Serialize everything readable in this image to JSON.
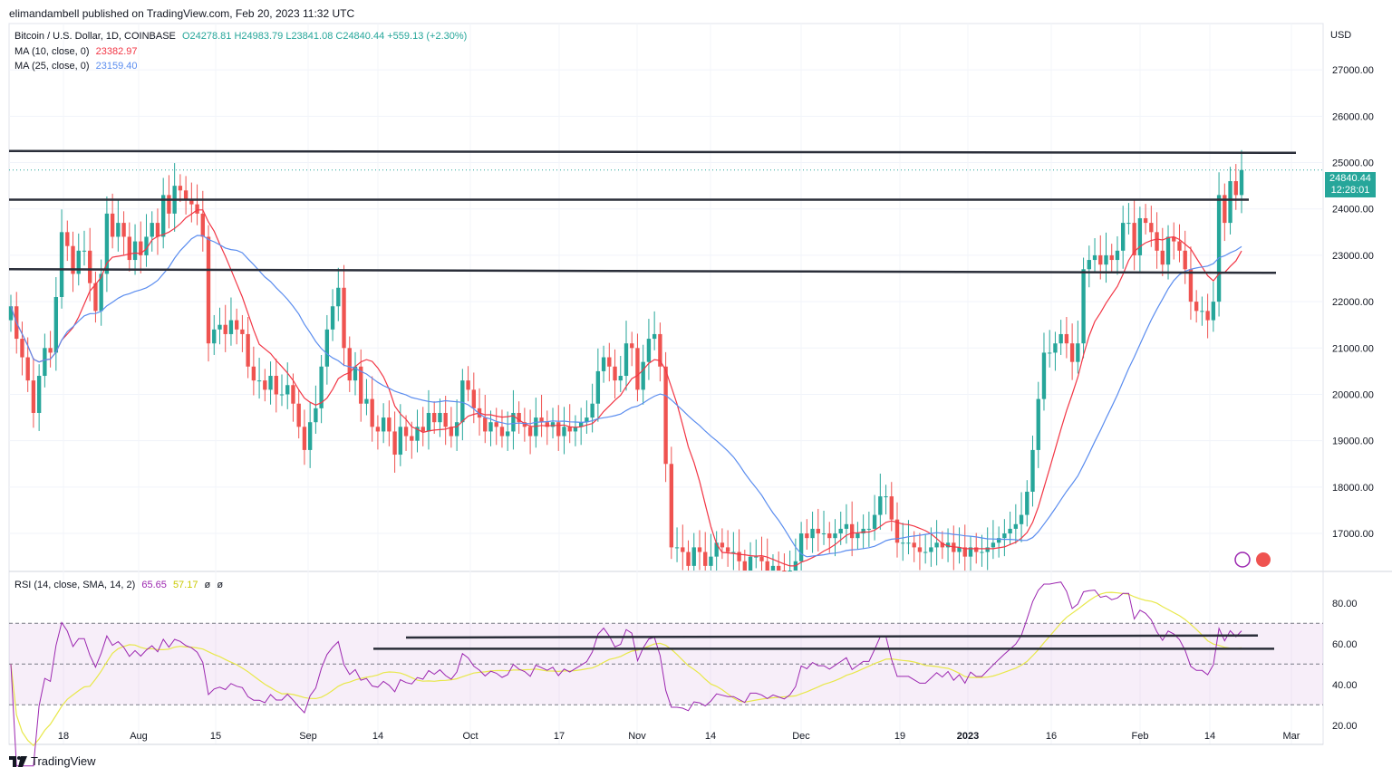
{
  "header": {
    "publisher": "elimandambell published on TradingView.com, Feb 20, 2023 11:32 UTC",
    "symbol": "Bitcoin / U.S. Dollar, 1D, COINBASE",
    "ohlc": "O24278.81  H24983.79  L23841.08  C24840.44  +559.13 (+2.30%)",
    "ma10_label": "MA (10, close, 0)",
    "ma10_value": "23382.97",
    "ma25_label": "MA (25, close, 0)",
    "ma25_value": "23159.40",
    "rsi_label": "RSI (14, close, SMA, 14, 2)",
    "rsi_value": "65.65",
    "rsi_sma_value": "57.17",
    "rsi_extra1": "ø",
    "rsi_extra2": "ø",
    "currency": "USD"
  },
  "price_badge": {
    "price": "24840.44",
    "countdown": "12:28:01"
  },
  "footer": {
    "brand": "TradingView"
  },
  "colors": {
    "up": "#26a69a",
    "down": "#ef5350",
    "ma10": "#f23645",
    "ma25": "#5b8def",
    "rsi": "#9c27b0",
    "rsi_sma": "#e8e84a"
  },
  "chart_data": [
    {
      "type": "candlestick",
      "x_tick_labels": [
        "18",
        "Aug",
        "15",
        "Sep",
        "14",
        "Oct",
        "17",
        "Nov",
        "14",
        "Dec",
        "19",
        "2023",
        "16",
        "Feb",
        "14",
        "Mar"
      ],
      "y_tick_labels": [
        "17000.00",
        "18000.00",
        "19000.00",
        "20000.00",
        "21000.00",
        "22000.00",
        "23000.00",
        "24000.00",
        "25000.00",
        "26000.00",
        "27000.00"
      ],
      "ylim": [
        16200,
        28000
      ],
      "closes": [
        21900,
        21200,
        20800,
        20300,
        19600,
        20400,
        21000,
        20900,
        22100,
        23500,
        23200,
        22600,
        23100,
        23100,
        22400,
        21800,
        22600,
        23900,
        23400,
        23700,
        23400,
        22900,
        23300,
        23000,
        23400,
        23700,
        23400,
        24300,
        23900,
        24500,
        24400,
        24200,
        24100,
        23900,
        23400,
        21100,
        21400,
        21500,
        21300,
        21600,
        21400,
        21300,
        20600,
        20300,
        20300,
        20100,
        20400,
        20000,
        20000,
        20200,
        19800,
        19300,
        18800,
        19400,
        19700,
        20600,
        21400,
        21900,
        22300,
        21000,
        20300,
        20600,
        19800,
        19900,
        19300,
        19200,
        19500,
        19200,
        18700,
        19300,
        19100,
        19000,
        19300,
        19200,
        19600,
        19400,
        19600,
        19300,
        19100,
        19400,
        20300,
        20100,
        19700,
        19500,
        19200,
        19400,
        19300,
        19100,
        19200,
        19600,
        19400,
        19300,
        19100,
        19500,
        19400,
        19300,
        19400,
        19100,
        19300,
        19200,
        19300,
        19400,
        19500,
        19800,
        20500,
        20800,
        20600,
        20300,
        20400,
        21100,
        21000,
        20100,
        20700,
        21200,
        21300,
        20600,
        18500,
        16700,
        16700,
        16600,
        16300,
        16700,
        16600,
        16300,
        16500,
        16800,
        16700,
        16600,
        16600,
        16400,
        16200,
        16500,
        16500,
        16400,
        16200,
        16300,
        16200,
        16100,
        16200,
        16400,
        17000,
        16900,
        17100,
        17000,
        17000,
        16900,
        17000,
        17100,
        17200,
        16900,
        17000,
        17100,
        17100,
        17400,
        17800,
        17800,
        17300,
        16800,
        16800,
        16800,
        16700,
        16600,
        16600,
        16700,
        16800,
        16700,
        16800,
        16600,
        16700,
        16500,
        16700,
        16600,
        16600,
        16700,
        16800,
        16900,
        17000,
        17100,
        17200,
        17400,
        17900,
        18800,
        19900,
        20900,
        20900,
        21100,
        21300,
        21100,
        20700,
        21100,
        22700,
        22900,
        23000,
        22800,
        23000,
        22900,
        23100,
        23700,
        23700,
        23000,
        23800,
        23700,
        23500,
        23100,
        22800,
        23400,
        23300,
        23100,
        22700,
        22000,
        21800,
        21800,
        21600,
        22000,
        24300,
        23700,
        24600,
        24300,
        24840
      ],
      "ma_series": [
        {
          "name": "MA (10, close, 0)",
          "last": 23382.97
        },
        {
          "name": "MA (25, close, 0)",
          "last": 23159.4
        }
      ],
      "levels": [
        25250,
        24200,
        22700
      ],
      "last_price": 24840.44
    },
    {
      "type": "line",
      "name": "RSI (14, close, SMA, 14, 2)",
      "ylim": [
        15,
        95
      ],
      "y_tick_labels": [
        "20.00",
        "40.00",
        "60.00",
        "80.00"
      ],
      "bands": [
        70,
        50,
        30
      ],
      "rsi_last": 65.65,
      "rsi_sma_last": 57.17
    }
  ]
}
